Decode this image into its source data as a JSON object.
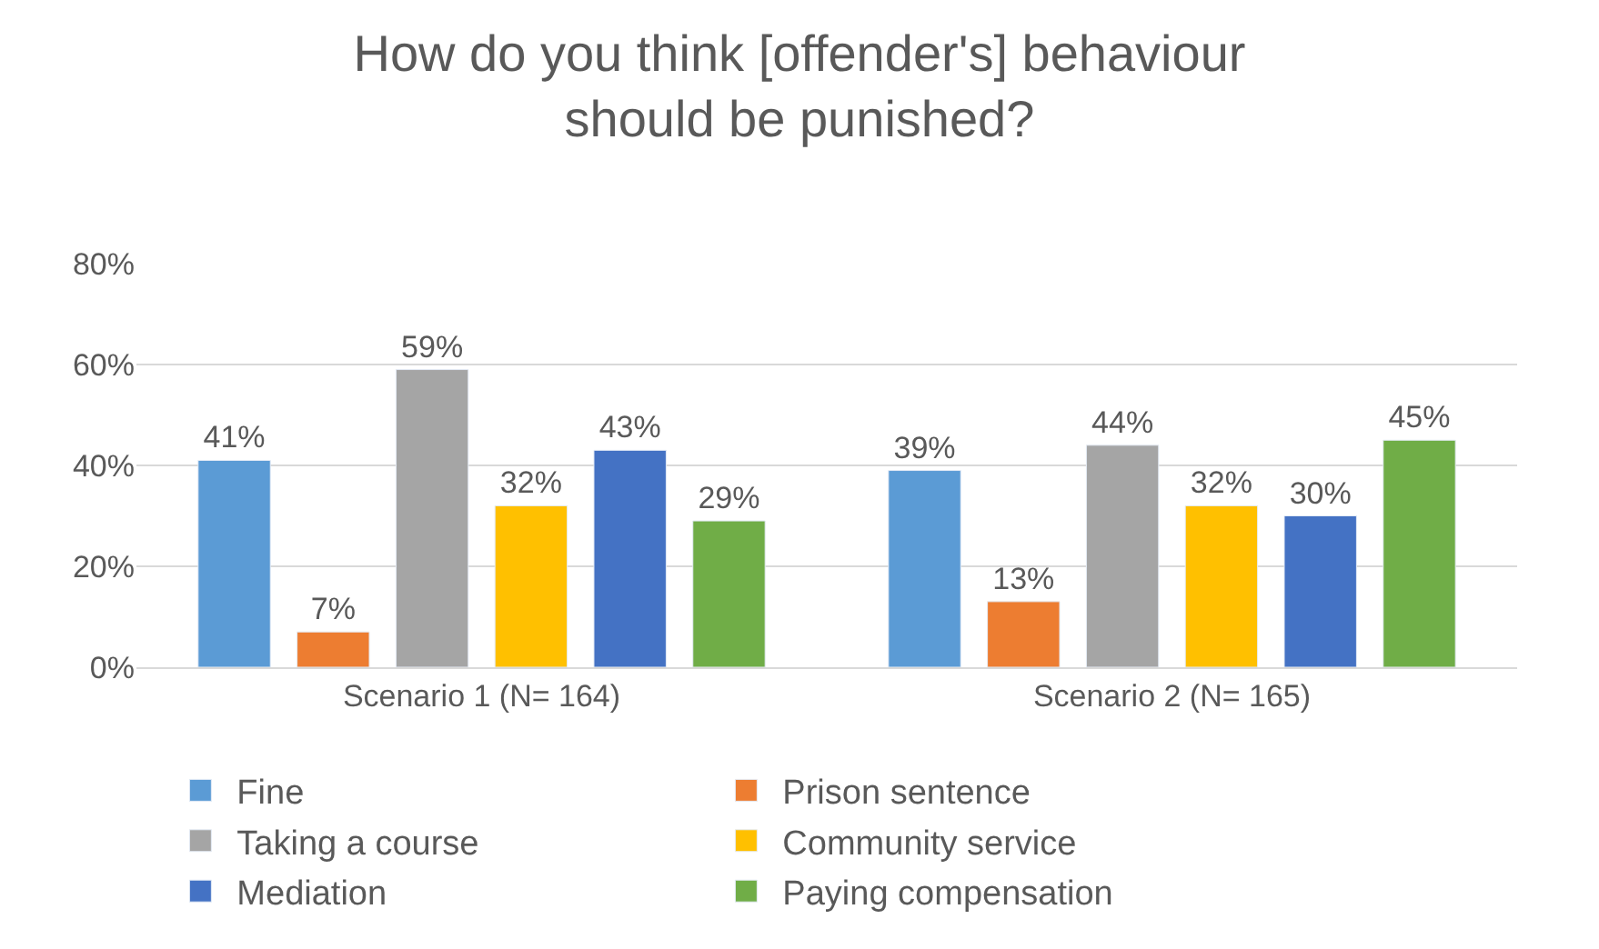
{
  "chart_data": {
    "type": "bar",
    "title": "How do you think [offender's] behaviour\nshould be punished?",
    "categories": [
      "Scenario 1 (N= 164)",
      "Scenario 2 (N= 165)"
    ],
    "series": [
      {
        "name": "Fine",
        "color": "#5b9bd5",
        "values": [
          41,
          39
        ],
        "value_labels": [
          "41%",
          "39%"
        ]
      },
      {
        "name": "Prison sentence",
        "color": "#ed7d31",
        "values": [
          7,
          13
        ],
        "value_labels": [
          "7%",
          "13%"
        ]
      },
      {
        "name": "Taking a course",
        "color": "#a5a5a5",
        "values": [
          59,
          44
        ],
        "value_labels": [
          "59%",
          "44%"
        ]
      },
      {
        "name": "Community service",
        "color": "#ffc000",
        "values": [
          32,
          32
        ],
        "value_labels": [
          "32%",
          "32%"
        ]
      },
      {
        "name": "Mediation",
        "color": "#4472c4",
        "values": [
          43,
          30
        ],
        "value_labels": [
          "43%",
          "30%"
        ]
      },
      {
        "name": "Paying compensation",
        "color": "#70ad47",
        "values": [
          29,
          45
        ],
        "value_labels": [
          "29%",
          "45%"
        ]
      }
    ],
    "ylim": [
      0,
      80
    ],
    "yticks": [
      {
        "value": 0,
        "label": "0%"
      },
      {
        "value": 20,
        "label": "20%"
      },
      {
        "value": 40,
        "label": "40%"
      },
      {
        "value": 60,
        "label": "60%"
      },
      {
        "value": 80,
        "label": "80%"
      }
    ],
    "grid": "y",
    "legend": "bottom"
  }
}
